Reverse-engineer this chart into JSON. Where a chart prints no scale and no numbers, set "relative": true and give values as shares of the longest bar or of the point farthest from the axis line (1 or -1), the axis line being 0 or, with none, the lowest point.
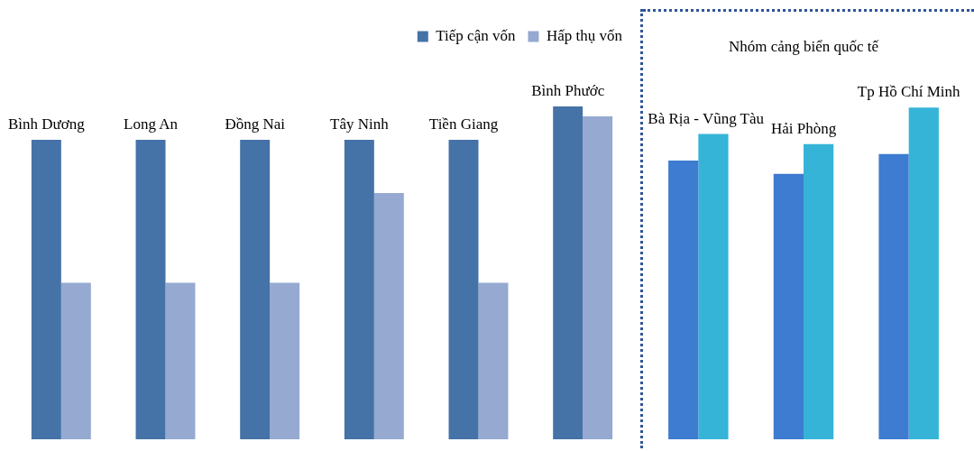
{
  "chart_data": [
    {
      "type": "bar",
      "relative": true,
      "legend": "top right",
      "categories": [
        "Bình Dương",
        "Long An",
        "Đồng Nai",
        "Tây Ninh",
        "Tiền Giang",
        "Bình Phước"
      ],
      "series": [
        {
          "name": "Tiếp cận vốn",
          "color": "#4572a7",
          "values": [
            0.9,
            0.9,
            0.9,
            0.9,
            0.9,
            1
          ]
        },
        {
          "name": "Hấp thụ vốn",
          "color": "#95a9d1",
          "values": [
            0.47,
            0.47,
            0.47,
            0.74,
            0.47,
            0.97
          ]
        }
      ]
    },
    {
      "type": "bar",
      "relative": true,
      "title": "Nhóm cảng biển quốc tế",
      "categories": [
        "Bà Rịa - Vũng Tàu",
        "Hải Phòng",
        "Tp Hồ Chí Minh"
      ],
      "series": [
        {
          "color": "#3d7cd0",
          "values": [
            0.84,
            0.8,
            0.86
          ]
        },
        {
          "color": "#36b4d8",
          "values": [
            0.92,
            0.89,
            1
          ]
        }
      ]
    }
  ]
}
